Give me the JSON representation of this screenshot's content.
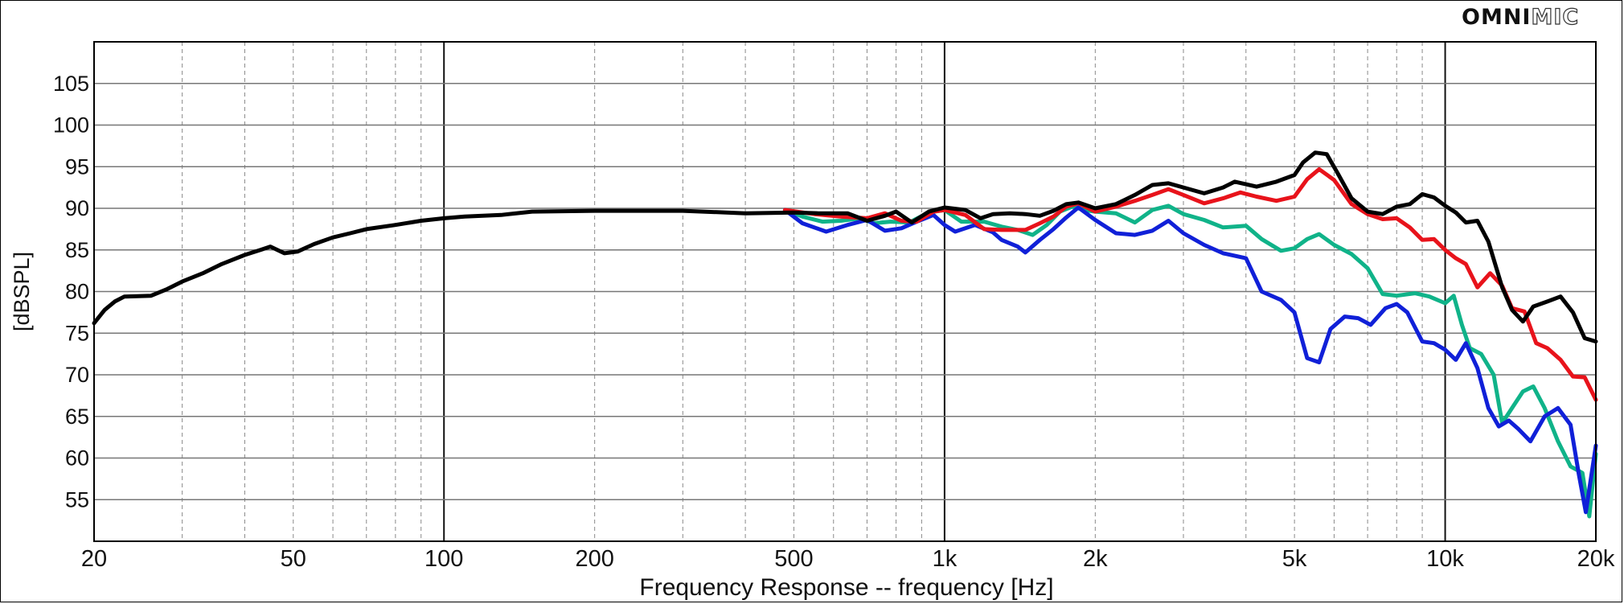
{
  "brand": {
    "part1": "OMNI",
    "part2": "MIC"
  },
  "colors": {
    "black": "#000000",
    "red": "#e8131b",
    "green": "#10b389",
    "blue": "#1020d8"
  },
  "chart_data": {
    "type": "line",
    "title": "",
    "xlabel": "Frequency Response -- frequency [Hz]",
    "ylabel": "[dBSPL]",
    "xscale": "log",
    "xlim": [
      20,
      20000
    ],
    "ylim": [
      50,
      110
    ],
    "grid": true,
    "x_ticks": [
      {
        "value": 20,
        "label": "20"
      },
      {
        "value": 50,
        "label": "50"
      },
      {
        "value": 100,
        "label": "100"
      },
      {
        "value": 200,
        "label": "200"
      },
      {
        "value": 500,
        "label": "500"
      },
      {
        "value": 1000,
        "label": "1k"
      },
      {
        "value": 2000,
        "label": "2k"
      },
      {
        "value": 5000,
        "label": "5k"
      },
      {
        "value": 10000,
        "label": "10k"
      },
      {
        "value": 20000,
        "label": "20k"
      }
    ],
    "y_ticks": [
      {
        "value": 55,
        "label": "55"
      },
      {
        "value": 60,
        "label": "60"
      },
      {
        "value": 65,
        "label": "65"
      },
      {
        "value": 70,
        "label": "70"
      },
      {
        "value": 75,
        "label": "75"
      },
      {
        "value": 80,
        "label": "80"
      },
      {
        "value": 85,
        "label": "85"
      },
      {
        "value": 90,
        "label": "90"
      },
      {
        "value": 95,
        "label": "95"
      },
      {
        "value": 100,
        "label": "100"
      },
      {
        "value": 105,
        "label": "105"
      }
    ],
    "series": [
      {
        "color": "#10b389",
        "points": [
          [
            480,
            89.8
          ],
          [
            520,
            89
          ],
          [
            570,
            88.4
          ],
          [
            620,
            88.5
          ],
          [
            680,
            88.8
          ],
          [
            720,
            88.2
          ],
          [
            780,
            88.4
          ],
          [
            850,
            88.3
          ],
          [
            930,
            89.5
          ],
          [
            1000,
            89.8
          ],
          [
            1080,
            88.4
          ],
          [
            1200,
            88.4
          ],
          [
            1300,
            87.8
          ],
          [
            1400,
            87.4
          ],
          [
            1500,
            86.8
          ],
          [
            1600,
            88
          ],
          [
            1700,
            89.6
          ],
          [
            1800,
            90.2
          ],
          [
            1900,
            89.8
          ],
          [
            2000,
            89.6
          ],
          [
            2200,
            89.4
          ],
          [
            2400,
            88.3
          ],
          [
            2600,
            89.8
          ],
          [
            2800,
            90.3
          ],
          [
            3000,
            89.3
          ],
          [
            3300,
            88.6
          ],
          [
            3600,
            87.7
          ],
          [
            4000,
            87.9
          ],
          [
            4300,
            86.3
          ],
          [
            4700,
            84.9
          ],
          [
            5000,
            85.2
          ],
          [
            5300,
            86.3
          ],
          [
            5600,
            86.9
          ],
          [
            6000,
            85.6
          ],
          [
            6500,
            84.5
          ],
          [
            7000,
            82.8
          ],
          [
            7500,
            79.7
          ],
          [
            8000,
            79.5
          ],
          [
            8700,
            79.8
          ],
          [
            9300,
            79.4
          ],
          [
            10000,
            78.6
          ],
          [
            10400,
            79.5
          ],
          [
            10800,
            76
          ],
          [
            11200,
            73.2
          ],
          [
            11800,
            72.5
          ],
          [
            12500,
            70
          ],
          [
            13000,
            64.2
          ],
          [
            13600,
            66
          ],
          [
            14300,
            68
          ],
          [
            15000,
            68.6
          ],
          [
            15800,
            66
          ],
          [
            16800,
            62
          ],
          [
            17800,
            59
          ],
          [
            18800,
            58.2
          ],
          [
            19400,
            53
          ],
          [
            20000,
            60.5
          ]
        ]
      },
      {
        "color": "#1020d8",
        "points": [
          [
            480,
            89.8
          ],
          [
            520,
            88.2
          ],
          [
            580,
            87.2
          ],
          [
            640,
            88
          ],
          [
            700,
            88.6
          ],
          [
            760,
            87.3
          ],
          [
            820,
            87.6
          ],
          [
            880,
            88.4
          ],
          [
            950,
            89.2
          ],
          [
            1000,
            88
          ],
          [
            1050,
            87.2
          ],
          [
            1150,
            88
          ],
          [
            1250,
            87.1
          ],
          [
            1300,
            86.2
          ],
          [
            1400,
            85.4
          ],
          [
            1450,
            84.7
          ],
          [
            1550,
            86.2
          ],
          [
            1650,
            87.5
          ],
          [
            1750,
            88.9
          ],
          [
            1850,
            90.1
          ],
          [
            2000,
            88.6
          ],
          [
            2200,
            87
          ],
          [
            2400,
            86.8
          ],
          [
            2600,
            87.3
          ],
          [
            2800,
            88.5
          ],
          [
            3000,
            87
          ],
          [
            3300,
            85.6
          ],
          [
            3600,
            84.6
          ],
          [
            4000,
            84
          ],
          [
            4300,
            80
          ],
          [
            4700,
            79
          ],
          [
            5000,
            77.5
          ],
          [
            5300,
            72
          ],
          [
            5600,
            71.5
          ],
          [
            5900,
            75.5
          ],
          [
            6300,
            77
          ],
          [
            6700,
            76.8
          ],
          [
            7100,
            76
          ],
          [
            7600,
            78
          ],
          [
            8000,
            78.5
          ],
          [
            8400,
            77.5
          ],
          [
            9000,
            74
          ],
          [
            9500,
            73.8
          ],
          [
            10000,
            73
          ],
          [
            10500,
            71.8
          ],
          [
            11000,
            73.8
          ],
          [
            11600,
            70.8
          ],
          [
            12200,
            66
          ],
          [
            12800,
            63.8
          ],
          [
            13400,
            64.5
          ],
          [
            14000,
            63.5
          ],
          [
            14800,
            62
          ],
          [
            15800,
            65
          ],
          [
            16800,
            66
          ],
          [
            17800,
            64
          ],
          [
            18500,
            58
          ],
          [
            19100,
            53.5
          ],
          [
            20000,
            61.5
          ]
        ]
      },
      {
        "color": "#e8131b",
        "points": [
          [
            480,
            89.8
          ],
          [
            550,
            89.3
          ],
          [
            620,
            89
          ],
          [
            700,
            88.8
          ],
          [
            760,
            89.4
          ],
          [
            820,
            88.5
          ],
          [
            880,
            88.4
          ],
          [
            950,
            89.6
          ],
          [
            1000,
            89.8
          ],
          [
            1100,
            89.2
          ],
          [
            1200,
            87.5
          ],
          [
            1300,
            87.4
          ],
          [
            1450,
            87.4
          ],
          [
            1550,
            88.2
          ],
          [
            1650,
            89
          ],
          [
            1750,
            90.2
          ],
          [
            1850,
            90.6
          ],
          [
            2000,
            89.6
          ],
          [
            2200,
            90.2
          ],
          [
            2400,
            90.9
          ],
          [
            2600,
            91.6
          ],
          [
            2800,
            92.3
          ],
          [
            3000,
            91.6
          ],
          [
            3300,
            90.6
          ],
          [
            3600,
            91.2
          ],
          [
            3900,
            91.9
          ],
          [
            4200,
            91.4
          ],
          [
            4600,
            90.9
          ],
          [
            5000,
            91.4
          ],
          [
            5300,
            93.5
          ],
          [
            5600,
            94.7
          ],
          [
            6000,
            93.4
          ],
          [
            6500,
            90.5
          ],
          [
            7000,
            89.3
          ],
          [
            7500,
            88.7
          ],
          [
            8000,
            88.8
          ],
          [
            8500,
            87.7
          ],
          [
            9000,
            86.2
          ],
          [
            9500,
            86.3
          ],
          [
            10000,
            85
          ],
          [
            10500,
            84
          ],
          [
            11000,
            83.3
          ],
          [
            11600,
            80.5
          ],
          [
            12300,
            82.2
          ],
          [
            13000,
            80.7
          ],
          [
            13600,
            78
          ],
          [
            14400,
            77.6
          ],
          [
            15200,
            73.8
          ],
          [
            16000,
            73.2
          ],
          [
            17000,
            71.8
          ],
          [
            18000,
            69.8
          ],
          [
            19000,
            69.7
          ],
          [
            20000,
            67
          ]
        ]
      },
      {
        "color": "#000000",
        "points": [
          [
            20,
            76.2
          ],
          [
            21,
            77.8
          ],
          [
            22,
            78.8
          ],
          [
            23,
            79.4
          ],
          [
            26,
            79.5
          ],
          [
            28,
            80.3
          ],
          [
            30,
            81.2
          ],
          [
            33,
            82.2
          ],
          [
            36,
            83.3
          ],
          [
            40,
            84.4
          ],
          [
            43,
            85
          ],
          [
            45,
            85.4
          ],
          [
            48,
            84.6
          ],
          [
            51,
            84.8
          ],
          [
            55,
            85.7
          ],
          [
            60,
            86.5
          ],
          [
            65,
            87
          ],
          [
            70,
            87.5
          ],
          [
            80,
            88
          ],
          [
            90,
            88.5
          ],
          [
            100,
            88.8
          ],
          [
            110,
            89
          ],
          [
            130,
            89.2
          ],
          [
            150,
            89.6
          ],
          [
            200,
            89.7
          ],
          [
            300,
            89.7
          ],
          [
            400,
            89.4
          ],
          [
            500,
            89.5
          ],
          [
            560,
            89.4
          ],
          [
            640,
            89.4
          ],
          [
            700,
            88.5
          ],
          [
            760,
            89.1
          ],
          [
            800,
            89.6
          ],
          [
            860,
            88.3
          ],
          [
            930,
            89.6
          ],
          [
            1000,
            90.1
          ],
          [
            1100,
            89.8
          ],
          [
            1180,
            88.8
          ],
          [
            1250,
            89.3
          ],
          [
            1350,
            89.4
          ],
          [
            1450,
            89.3
          ],
          [
            1550,
            89.1
          ],
          [
            1650,
            89.7
          ],
          [
            1750,
            90.5
          ],
          [
            1850,
            90.7
          ],
          [
            2000,
            90
          ],
          [
            2200,
            90.5
          ],
          [
            2400,
            91.6
          ],
          [
            2600,
            92.8
          ],
          [
            2800,
            93
          ],
          [
            3000,
            92.5
          ],
          [
            3300,
            91.8
          ],
          [
            3600,
            92.5
          ],
          [
            3800,
            93.2
          ],
          [
            4200,
            92.6
          ],
          [
            4600,
            93.2
          ],
          [
            5000,
            94
          ],
          [
            5200,
            95.5
          ],
          [
            5500,
            96.7
          ],
          [
            5800,
            96.5
          ],
          [
            6100,
            94.2
          ],
          [
            6500,
            91.2
          ],
          [
            7000,
            89.6
          ],
          [
            7500,
            89.3
          ],
          [
            8000,
            90.2
          ],
          [
            8500,
            90.5
          ],
          [
            9000,
            91.7
          ],
          [
            9500,
            91.3
          ],
          [
            10000,
            90.3
          ],
          [
            10500,
            89.5
          ],
          [
            11000,
            88.3
          ],
          [
            11600,
            88.5
          ],
          [
            12200,
            86
          ],
          [
            13000,
            80.5
          ],
          [
            13600,
            77.8
          ],
          [
            14300,
            76.4
          ],
          [
            15000,
            78.2
          ],
          [
            16000,
            78.8
          ],
          [
            17000,
            79.4
          ],
          [
            18000,
            77.5
          ],
          [
            19000,
            74.4
          ],
          [
            20000,
            74
          ]
        ]
      }
    ]
  }
}
